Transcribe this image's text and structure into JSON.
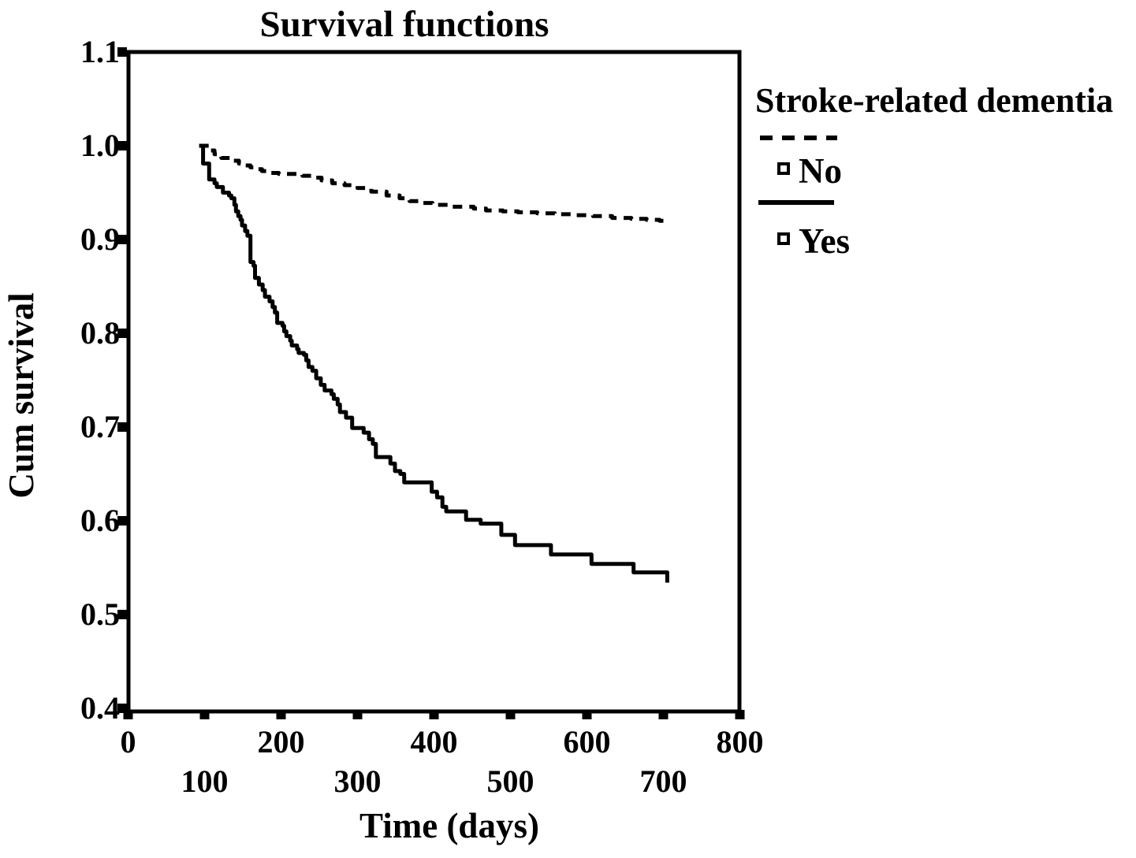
{
  "page": {
    "background": "#ffffff",
    "ink_color": "#000000"
  },
  "chart_data": {
    "type": "line",
    "subtype": "kaplan-meier-step-survival",
    "title": "Survival functions",
    "xlabel": "Time (days)",
    "ylabel": "Cum survival",
    "xlim": [
      0,
      800
    ],
    "ylim": [
      0.4,
      1.1
    ],
    "grid": false,
    "frame": true,
    "x_ticks": [
      {
        "label": "0",
        "value": 0,
        "row": 1
      },
      {
        "label": "100",
        "value": 100,
        "row": 2
      },
      {
        "label": "200",
        "value": 200,
        "row": 1
      },
      {
        "label": "300",
        "value": 300,
        "row": 2
      },
      {
        "label": "400",
        "value": 400,
        "row": 1
      },
      {
        "label": "500",
        "value": 500,
        "row": 2
      },
      {
        "label": "600",
        "value": 600,
        "row": 1
      },
      {
        "label": "700",
        "value": 700,
        "row": 2
      },
      {
        "label": "800",
        "value": 800,
        "row": 1
      }
    ],
    "y_ticks": [
      {
        "label": "1.1",
        "value": 1.1
      },
      {
        "label": "1.0",
        "value": 1.0
      },
      {
        "label": "0.9",
        "value": 0.9
      },
      {
        "label": "0.8",
        "value": 0.8
      },
      {
        "label": "0.7",
        "value": 0.7
      },
      {
        "label": "0.6",
        "value": 0.6
      },
      {
        "label": "0.5",
        "value": 0.5
      },
      {
        "label": "0.4",
        "value": 0.4
      }
    ],
    "legend": {
      "title": "Stroke-related dementia",
      "position": "right",
      "entries": [
        {
          "label": "No",
          "line_style": "dashed",
          "marker": "open-square"
        },
        {
          "label": "Yes",
          "line_style": "solid",
          "marker": "open-square"
        }
      ]
    },
    "series": [
      {
        "name": "No",
        "line_style": "dashed",
        "points": [
          [
            93,
            1.0
          ],
          [
            106,
            0.995
          ],
          [
            113,
            0.991
          ],
          [
            122,
            0.987
          ],
          [
            133,
            0.984
          ],
          [
            145,
            0.981
          ],
          [
            152,
            0.979
          ],
          [
            160,
            0.977
          ],
          [
            168,
            0.975
          ],
          [
            175,
            0.973
          ],
          [
            183,
            0.971
          ],
          [
            197,
            0.97
          ],
          [
            228,
            0.968
          ],
          [
            240,
            0.966
          ],
          [
            253,
            0.963
          ],
          [
            267,
            0.96
          ],
          [
            283,
            0.958
          ],
          [
            300,
            0.955
          ],
          [
            318,
            0.951
          ],
          [
            338,
            0.947
          ],
          [
            355,
            0.944
          ],
          [
            368,
            0.941
          ],
          [
            382,
            0.939
          ],
          [
            398,
            0.937
          ],
          [
            420,
            0.935
          ],
          [
            452,
            0.933
          ],
          [
            468,
            0.931
          ],
          [
            490,
            0.93
          ],
          [
            510,
            0.929
          ],
          [
            535,
            0.928
          ],
          [
            558,
            0.927
          ],
          [
            583,
            0.926
          ],
          [
            608,
            0.925
          ],
          [
            633,
            0.923
          ],
          [
            658,
            0.922
          ],
          [
            678,
            0.921
          ],
          [
            695,
            0.92
          ],
          [
            704,
            0.918
          ]
        ]
      },
      {
        "name": "Yes",
        "line_style": "solid",
        "points": [
          [
            93,
            1.0
          ],
          [
            98,
            0.981
          ],
          [
            106,
            0.964
          ],
          [
            113,
            0.96
          ],
          [
            116,
            0.956
          ],
          [
            124,
            0.95
          ],
          [
            132,
            0.947
          ],
          [
            135,
            0.944
          ],
          [
            139,
            0.937
          ],
          [
            141,
            0.93
          ],
          [
            144,
            0.925
          ],
          [
            147,
            0.921
          ],
          [
            149,
            0.915
          ],
          [
            153,
            0.909
          ],
          [
            156,
            0.904
          ],
          [
            160,
            0.876
          ],
          [
            164,
            0.872
          ],
          [
            166,
            0.859
          ],
          [
            171,
            0.852
          ],
          [
            176,
            0.846
          ],
          [
            179,
            0.839
          ],
          [
            185,
            0.834
          ],
          [
            189,
            0.828
          ],
          [
            192,
            0.822
          ],
          [
            195,
            0.811
          ],
          [
            202,
            0.808
          ],
          [
            204,
            0.802
          ],
          [
            207,
            0.797
          ],
          [
            212,
            0.792
          ],
          [
            214,
            0.787
          ],
          [
            221,
            0.783
          ],
          [
            223,
            0.779
          ],
          [
            230,
            0.777
          ],
          [
            233,
            0.771
          ],
          [
            236,
            0.764
          ],
          [
            241,
            0.76
          ],
          [
            246,
            0.752
          ],
          [
            252,
            0.745
          ],
          [
            257,
            0.739
          ],
          [
            266,
            0.735
          ],
          [
            269,
            0.73
          ],
          [
            274,
            0.724
          ],
          [
            277,
            0.716
          ],
          [
            285,
            0.71
          ],
          [
            293,
            0.699
          ],
          [
            308,
            0.694
          ],
          [
            315,
            0.687
          ],
          [
            320,
            0.682
          ],
          [
            324,
            0.668
          ],
          [
            343,
            0.661
          ],
          [
            349,
            0.653
          ],
          [
            356,
            0.65
          ],
          [
            361,
            0.641
          ],
          [
            397,
            0.631
          ],
          [
            404,
            0.625
          ],
          [
            411,
            0.615
          ],
          [
            416,
            0.61
          ],
          [
            442,
            0.601
          ],
          [
            461,
            0.597
          ],
          [
            488,
            0.585
          ],
          [
            506,
            0.574
          ],
          [
            553,
            0.564
          ],
          [
            606,
            0.554
          ],
          [
            661,
            0.545
          ],
          [
            705,
            0.534
          ]
        ]
      }
    ]
  }
}
